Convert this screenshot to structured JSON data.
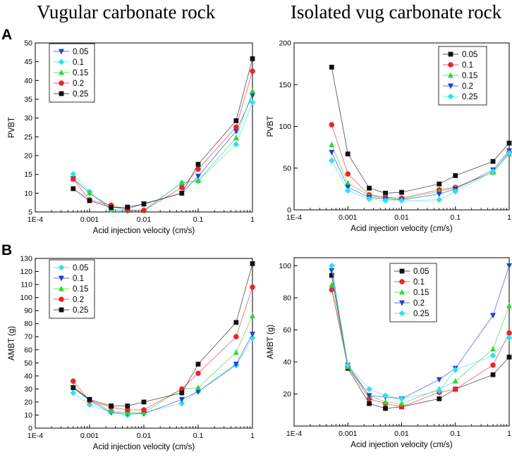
{
  "titles": {
    "left": "Vugular carbonate rock",
    "right": "Isolated vug carbonate rock"
  },
  "row_labels": [
    "A",
    "B"
  ],
  "colors": {
    "s005": "#1f3fd6",
    "s01": "#33e0ea",
    "s015": "#33d43a",
    "s02": "#e8262b",
    "s025": "#111111",
    "line": "#888888"
  },
  "chart_data": [
    {
      "id": "tl",
      "type": "scatter",
      "title": "Vugular carbonate rock",
      "xlabel": "Acid injection velocity (cm/s)",
      "ylabel": "PVBT",
      "xscale": "log",
      "xlim": [
        0.0001,
        1
      ],
      "ylim": [
        5,
        50
      ],
      "xticks": [
        0.0001,
        0.001,
        0.01,
        0.1,
        1
      ],
      "xticklabels": [
        "1E-4",
        "0.001",
        "0.01",
        "0.1",
        "1"
      ],
      "yticks": [
        5,
        10,
        15,
        20,
        25,
        30,
        35,
        40,
        45,
        50
      ],
      "legend_loc": "top-left",
      "x": [
        0.0005,
        0.001,
        0.0025,
        0.005,
        0.01,
        0.05,
        0.1,
        0.5,
        1
      ],
      "series": [
        {
          "name": "0.05",
          "marker": "tri_down",
          "color": "#1f3fd6",
          "values": [
            13.9,
            10,
            6.3,
            5.8,
            7.2,
            10,
            14.5,
            26.5,
            36
          ]
        },
        {
          "name": "0.1",
          "marker": "diamond",
          "color": "#33e0ea",
          "values": [
            15.1,
            10.4,
            5.5,
            5.2,
            5.5,
            12.8,
            13.3,
            23,
            34.2
          ]
        },
        {
          "name": "0.15",
          "marker": "tri_up",
          "color": "#33d43a",
          "values": [
            13.7,
            10.1,
            5.7,
            5.4,
            5.4,
            12.7,
            13.3,
            24.7,
            37.2
          ]
        },
        {
          "name": "0.2",
          "marker": "circle",
          "color": "#e8262b",
          "values": [
            13.8,
            8.2,
            6.8,
            5.5,
            5.4,
            11.5,
            16.4,
            27.6,
            42.5
          ]
        },
        {
          "name": "0.25",
          "marker": "square",
          "color": "#111111",
          "values": [
            11.2,
            8.0,
            6.2,
            6.3,
            7.1,
            10,
            17.7,
            29.3,
            45.8
          ]
        }
      ]
    },
    {
      "id": "tr",
      "type": "scatter",
      "title": "Isolated vug carbonate rock",
      "xlabel": "Acid injection velocity (cm/s)",
      "ylabel": "PVBT",
      "xscale": "log",
      "xlim": [
        0.0001,
        1
      ],
      "ylim": [
        0,
        200
      ],
      "xticks": [
        0.0001,
        0.001,
        0.01,
        0.1,
        1
      ],
      "xticklabels": [
        "1E-4",
        "0.001",
        "0.01",
        "0.1",
        "1"
      ],
      "yticks": [
        0,
        50,
        100,
        150,
        200
      ],
      "legend_loc": "top-right",
      "x": [
        0.0005,
        0.001,
        0.0025,
        0.005,
        0.01,
        0.05,
        0.1,
        0.5,
        1
      ],
      "series": [
        {
          "name": "0.05",
          "marker": "square",
          "color": "#111111",
          "values": [
            171,
            67,
            26,
            20,
            21,
            31,
            41,
            58,
            80
          ]
        },
        {
          "name": "0.1",
          "marker": "circle",
          "color": "#e8262b",
          "values": [
            102,
            43,
            18,
            15,
            14,
            24,
            27,
            45,
            69
          ]
        },
        {
          "name": "0.15",
          "marker": "tri_up",
          "color": "#33d43a",
          "values": [
            78,
            32,
            17,
            14,
            13,
            22,
            26,
            45,
            67
          ]
        },
        {
          "name": "0.2",
          "marker": "tri_down",
          "color": "#1f3fd6",
          "values": [
            69,
            27,
            15,
            13,
            12,
            19,
            25,
            48,
            71
          ]
        },
        {
          "name": "0.25",
          "marker": "diamond",
          "color": "#33e0ea",
          "values": [
            59,
            23,
            13,
            11,
            11,
            12,
            22,
            46,
            68
          ]
        }
      ]
    },
    {
      "id": "bl",
      "type": "scatter",
      "title": "Vugular carbonate rock",
      "xlabel": "Acid injection velocity (cm/s)",
      "ylabel": "AMBT (g)",
      "xscale": "log",
      "xlim": [
        0.0001,
        1
      ],
      "ylim": [
        0,
        130
      ],
      "xticks": [
        0.0001,
        0.001,
        0.01,
        0.1,
        1
      ],
      "xticklabels": [
        "1E-4",
        "0.001",
        "0.01",
        "0.1",
        "1"
      ],
      "yticks": [
        0,
        10,
        20,
        30,
        40,
        50,
        60,
        70,
        80,
        90,
        100,
        110,
        120,
        130
      ],
      "legend_loc": "top-left",
      "x": [
        0.0005,
        0.001,
        0.0025,
        0.005,
        0.01,
        0.05,
        0.1,
        0.5,
        1
      ],
      "series": [
        {
          "name": "0.05",
          "marker": "diamond",
          "color": "#33e0ea",
          "values": [
            27,
            18,
            12,
            10,
            12,
            19,
            28,
            48,
            69
          ]
        },
        {
          "name": "0.1",
          "marker": "tri_down",
          "color": "#1f3fd6",
          "values": [
            31,
            21,
            12,
            11,
            11,
            22,
            28,
            49,
            72
          ]
        },
        {
          "name": "0.15",
          "marker": "tri_up",
          "color": "#33d43a",
          "values": [
            32,
            22,
            13,
            12,
            12,
            30,
            31,
            58,
            86
          ]
        },
        {
          "name": "0.2",
          "marker": "circle",
          "color": "#e8262b",
          "values": [
            36,
            21,
            16,
            14,
            14,
            30,
            42,
            70,
            108
          ]
        },
        {
          "name": "0.25",
          "marker": "square",
          "color": "#111111",
          "values": [
            31,
            22,
            17,
            17,
            20,
            27,
            49,
            81,
            126
          ]
        }
      ]
    },
    {
      "id": "br",
      "type": "scatter",
      "title": "Isolated vug carbonate rock",
      "xlabel": "Acid injection velocity (cm/s)",
      "ylabel": "AMBT (g)",
      "xscale": "log",
      "xlim": [
        0.0001,
        1
      ],
      "ylim": [
        0,
        105
      ],
      "xticks": [
        0.0001,
        0.001,
        0.01,
        0.1,
        1
      ],
      "xticklabels": [
        "1E-4",
        "0.001",
        "0.01",
        "0.1",
        "1"
      ],
      "yticks": [
        20,
        40,
        60,
        80,
        100
      ],
      "legend_loc": "top-center",
      "x": [
        0.0005,
        0.001,
        0.0025,
        0.005,
        0.01,
        0.05,
        0.1,
        0.5,
        1
      ],
      "series": [
        {
          "name": "0.05",
          "marker": "square",
          "color": "#111111",
          "values": [
            94,
            36,
            14,
            11,
            12,
            17,
            23,
            32,
            43
          ]
        },
        {
          "name": "0.1",
          "marker": "circle",
          "color": "#e8262b",
          "values": [
            85,
            37,
            17,
            14,
            12,
            21,
            23,
            38,
            58
          ]
        },
        {
          "name": "0.15",
          "marker": "tri_up",
          "color": "#33d43a",
          "values": [
            88,
            37,
            19,
            15,
            14,
            23,
            28,
            48,
            75
          ]
        },
        {
          "name": "0.2",
          "marker": "tri_down",
          "color": "#1f3fd6",
          "values": [
            97,
            38,
            19,
            18,
            17,
            29,
            36,
            69,
            100
          ]
        },
        {
          "name": "0.25",
          "marker": "diamond",
          "color": "#33e0ea",
          "values": [
            100,
            38,
            23,
            19,
            17,
            22,
            35,
            44,
            55
          ]
        }
      ]
    }
  ]
}
